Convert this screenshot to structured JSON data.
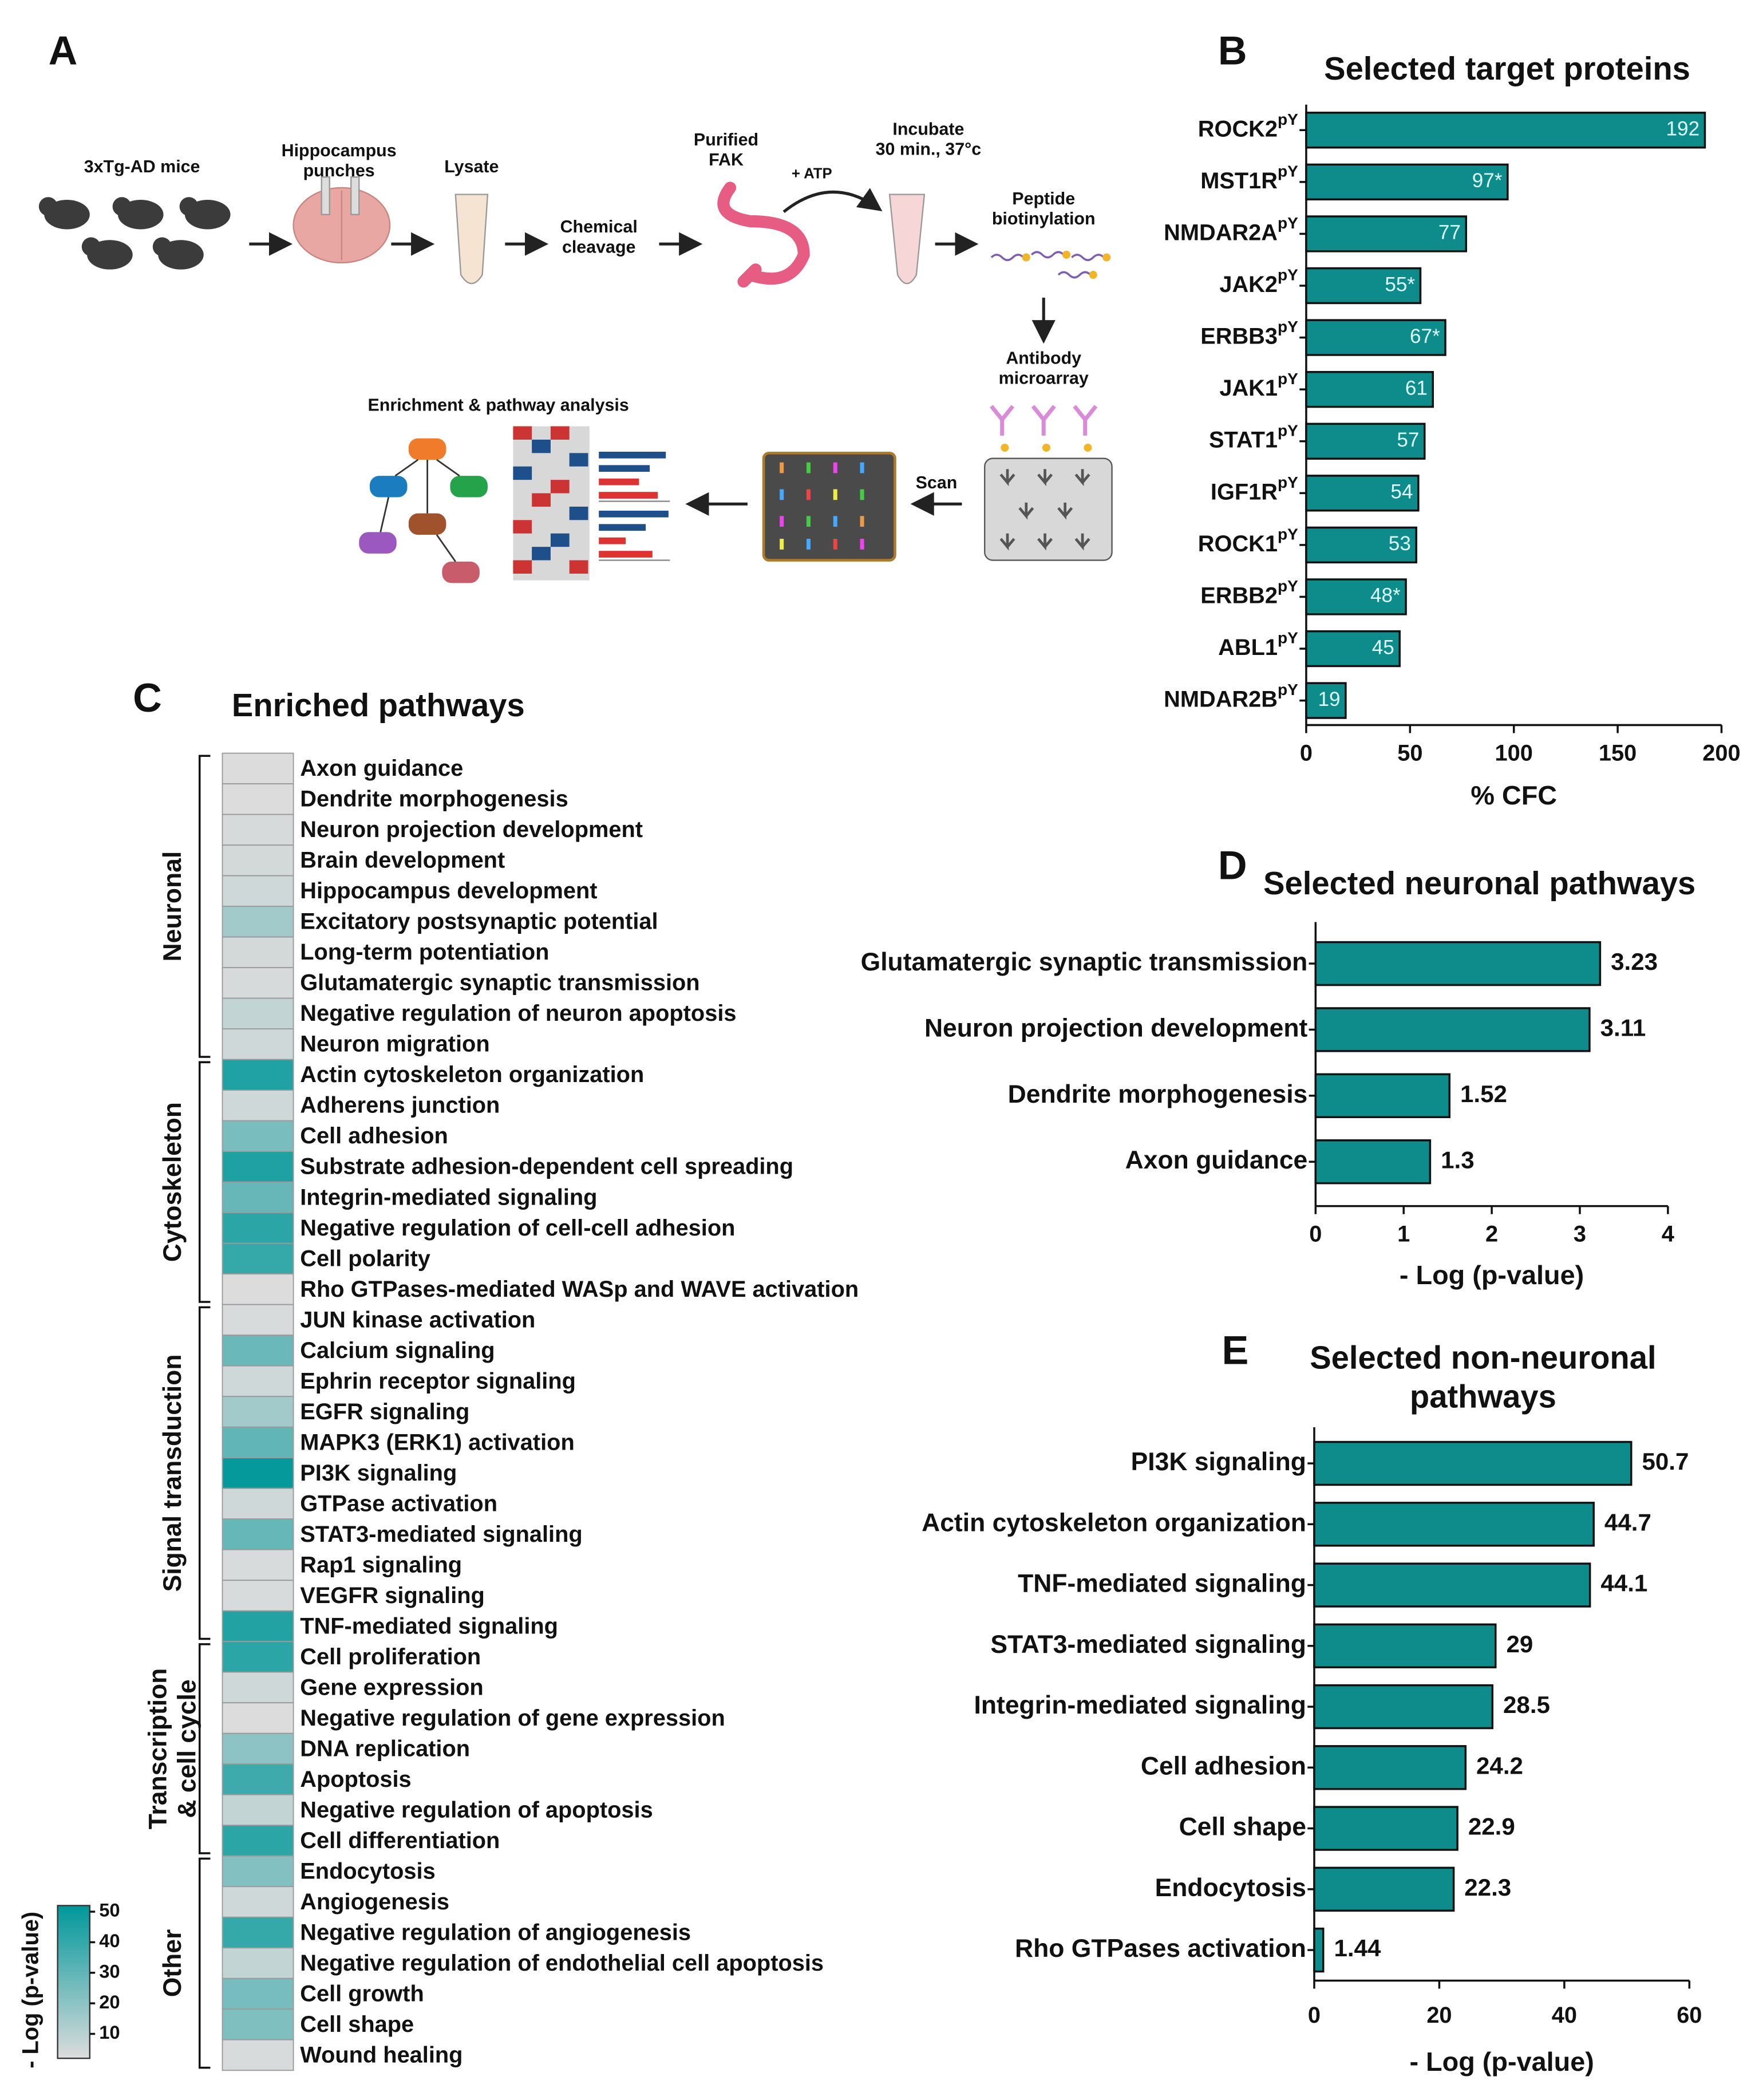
{
  "workflow": {
    "panel": "A",
    "steps": [
      [
        "3xTg-AD mice"
      ],
      [
        "Hippocampus",
        "punches"
      ],
      [
        "Lysate"
      ],
      [
        "Chemical",
        "cleavage"
      ],
      [
        "Purified",
        "FAK"
      ],
      [
        "+ ATP"
      ],
      [
        "Incubate",
        "30 min., 37°c"
      ],
      [
        "Peptide",
        "biotinylation"
      ],
      [
        "Antibody",
        "microarray"
      ],
      [
        "Scan"
      ],
      [
        "Enrichment & pathway analysis"
      ]
    ]
  },
  "chart_data": [
    {
      "panel": "B",
      "type": "barh",
      "title": "Selected target proteins",
      "categories": [
        "ROCK2",
        "MST1R",
        "NMDAR2A",
        "JAK2",
        "ERBB3",
        "JAK1",
        "STAT1",
        "IGF1R",
        "ROCK1",
        "ERBB2",
        "ABL1",
        "NMDAR2B"
      ],
      "category_superscript": "pY",
      "values": [
        192,
        97,
        77,
        55,
        67,
        61,
        57,
        54,
        53,
        48,
        45,
        19
      ],
      "value_labels": [
        "192",
        "97*",
        "77",
        "55*",
        "67*",
        "61",
        "57",
        "54",
        "53",
        "48*",
        "45",
        "19"
      ],
      "xlim": [
        0,
        200
      ],
      "xticks": [
        0,
        50,
        100,
        150,
        200
      ],
      "xlabel": "% CFC",
      "color": "#0e8b8b"
    },
    {
      "panel": "C",
      "type": "heatmap",
      "title": "Enriched pathways",
      "groups": [
        {
          "label_lines": [
            "Neuronal"
          ],
          "categories": [
            "Axon guidance",
            "Dendrite morphogenesis",
            "Neuron projection development",
            "Brain development",
            "Hippocampus development",
            "Excitatory postsynaptic potential",
            "Long-term potentiation",
            "Glutamatergic synaptic transmission",
            "Negative regulation of neuron apoptosis",
            "Neuron migration"
          ],
          "values": [
            1.3,
            1.52,
            3.11,
            4,
            5,
            15,
            4,
            3.23,
            8,
            5
          ]
        },
        {
          "label_lines": [
            "Cytoskeleton"
          ],
          "categories": [
            "Actin cytoskeleton organization",
            "Adherens junction",
            "Cell adhesion",
            "Substrate adhesion-dependent cell spreading",
            "Integrin-mediated signaling",
            "Negative regulation of cell-cell adhesion",
            "Cell polarity",
            "Rho GTPases-mediated WASp and WAVE activation"
          ],
          "values": [
            44.7,
            5,
            24.2,
            45,
            28.5,
            42,
            40,
            1.44
          ]
        },
        {
          "label_lines": [
            "Signal transduction"
          ],
          "categories": [
            "JUN kinase activation",
            "Calcium signaling",
            "Ephrin receptor signaling",
            "EGFR signaling",
            "MAPK3 (ERK1) activation",
            "PI3K signaling",
            "GTPase activation",
            "STAT3-mediated signaling",
            "Rap1 signaling",
            "VEGFR signaling",
            "TNF-mediated signaling"
          ],
          "values": [
            3,
            28,
            5,
            15,
            30,
            50.7,
            5,
            29,
            3,
            3,
            44.1
          ]
        },
        {
          "label_lines": [
            "Transcription",
            "& cell cycle"
          ],
          "categories": [
            "Cell proliferation",
            "Gene expression",
            "Negative regulation of gene expression",
            "DNA replication",
            "Apoptosis",
            "Negative regulation of apoptosis",
            "Cell differentiation"
          ],
          "values": [
            42,
            5,
            2,
            20,
            38,
            8,
            42
          ]
        },
        {
          "label_lines": [
            "Other"
          ],
          "categories": [
            "Endocytosis",
            "Angiogenesis",
            "Negative regulation of angiogenesis",
            "Negative regulation of endothelial cell apoptosis",
            "Cell growth",
            "Cell shape",
            "Wound healing"
          ],
          "values": [
            22.3,
            5,
            40,
            8,
            25,
            22.9,
            3
          ]
        }
      ],
      "colorbar": {
        "label": "- Log (p-value)",
        "clim": [
          2,
          52
        ],
        "ticks": [
          10,
          20,
          30,
          40,
          50
        ],
        "colors": [
          "#dcdcdc",
          "#00979a"
        ]
      }
    },
    {
      "panel": "D",
      "type": "barh",
      "title_lines": [
        "Selected neuronal pathways"
      ],
      "categories": [
        "Glutamatergic synaptic transmission",
        "Neuron projection development",
        "Dendrite morphogenesis",
        "Axon guidance"
      ],
      "values": [
        3.23,
        3.11,
        1.52,
        1.3
      ],
      "xlim": [
        0,
        4
      ],
      "xticks": [
        0,
        1,
        2,
        3,
        4
      ],
      "xlabel": "- Log (p-value)",
      "color": "#0e8b8b"
    },
    {
      "panel": "E",
      "type": "barh",
      "title_lines": [
        "Selected non-neuronal",
        "pathways"
      ],
      "categories": [
        "PI3K signaling",
        "Actin cytoskeleton organization",
        "TNF-mediated signaling",
        "STAT3-mediated signaling",
        "Integrin-mediated signaling",
        "Cell adhesion",
        "Cell shape",
        "Endocytosis",
        "Rho GTPases activation"
      ],
      "values": [
        50.7,
        44.7,
        44.1,
        29,
        28.5,
        24.2,
        22.9,
        22.3,
        1.44
      ],
      "xlim": [
        0,
        60
      ],
      "xticks": [
        0,
        20,
        40,
        60
      ],
      "xlabel": "- Log (p-value)",
      "color": "#0e8b8b"
    }
  ]
}
